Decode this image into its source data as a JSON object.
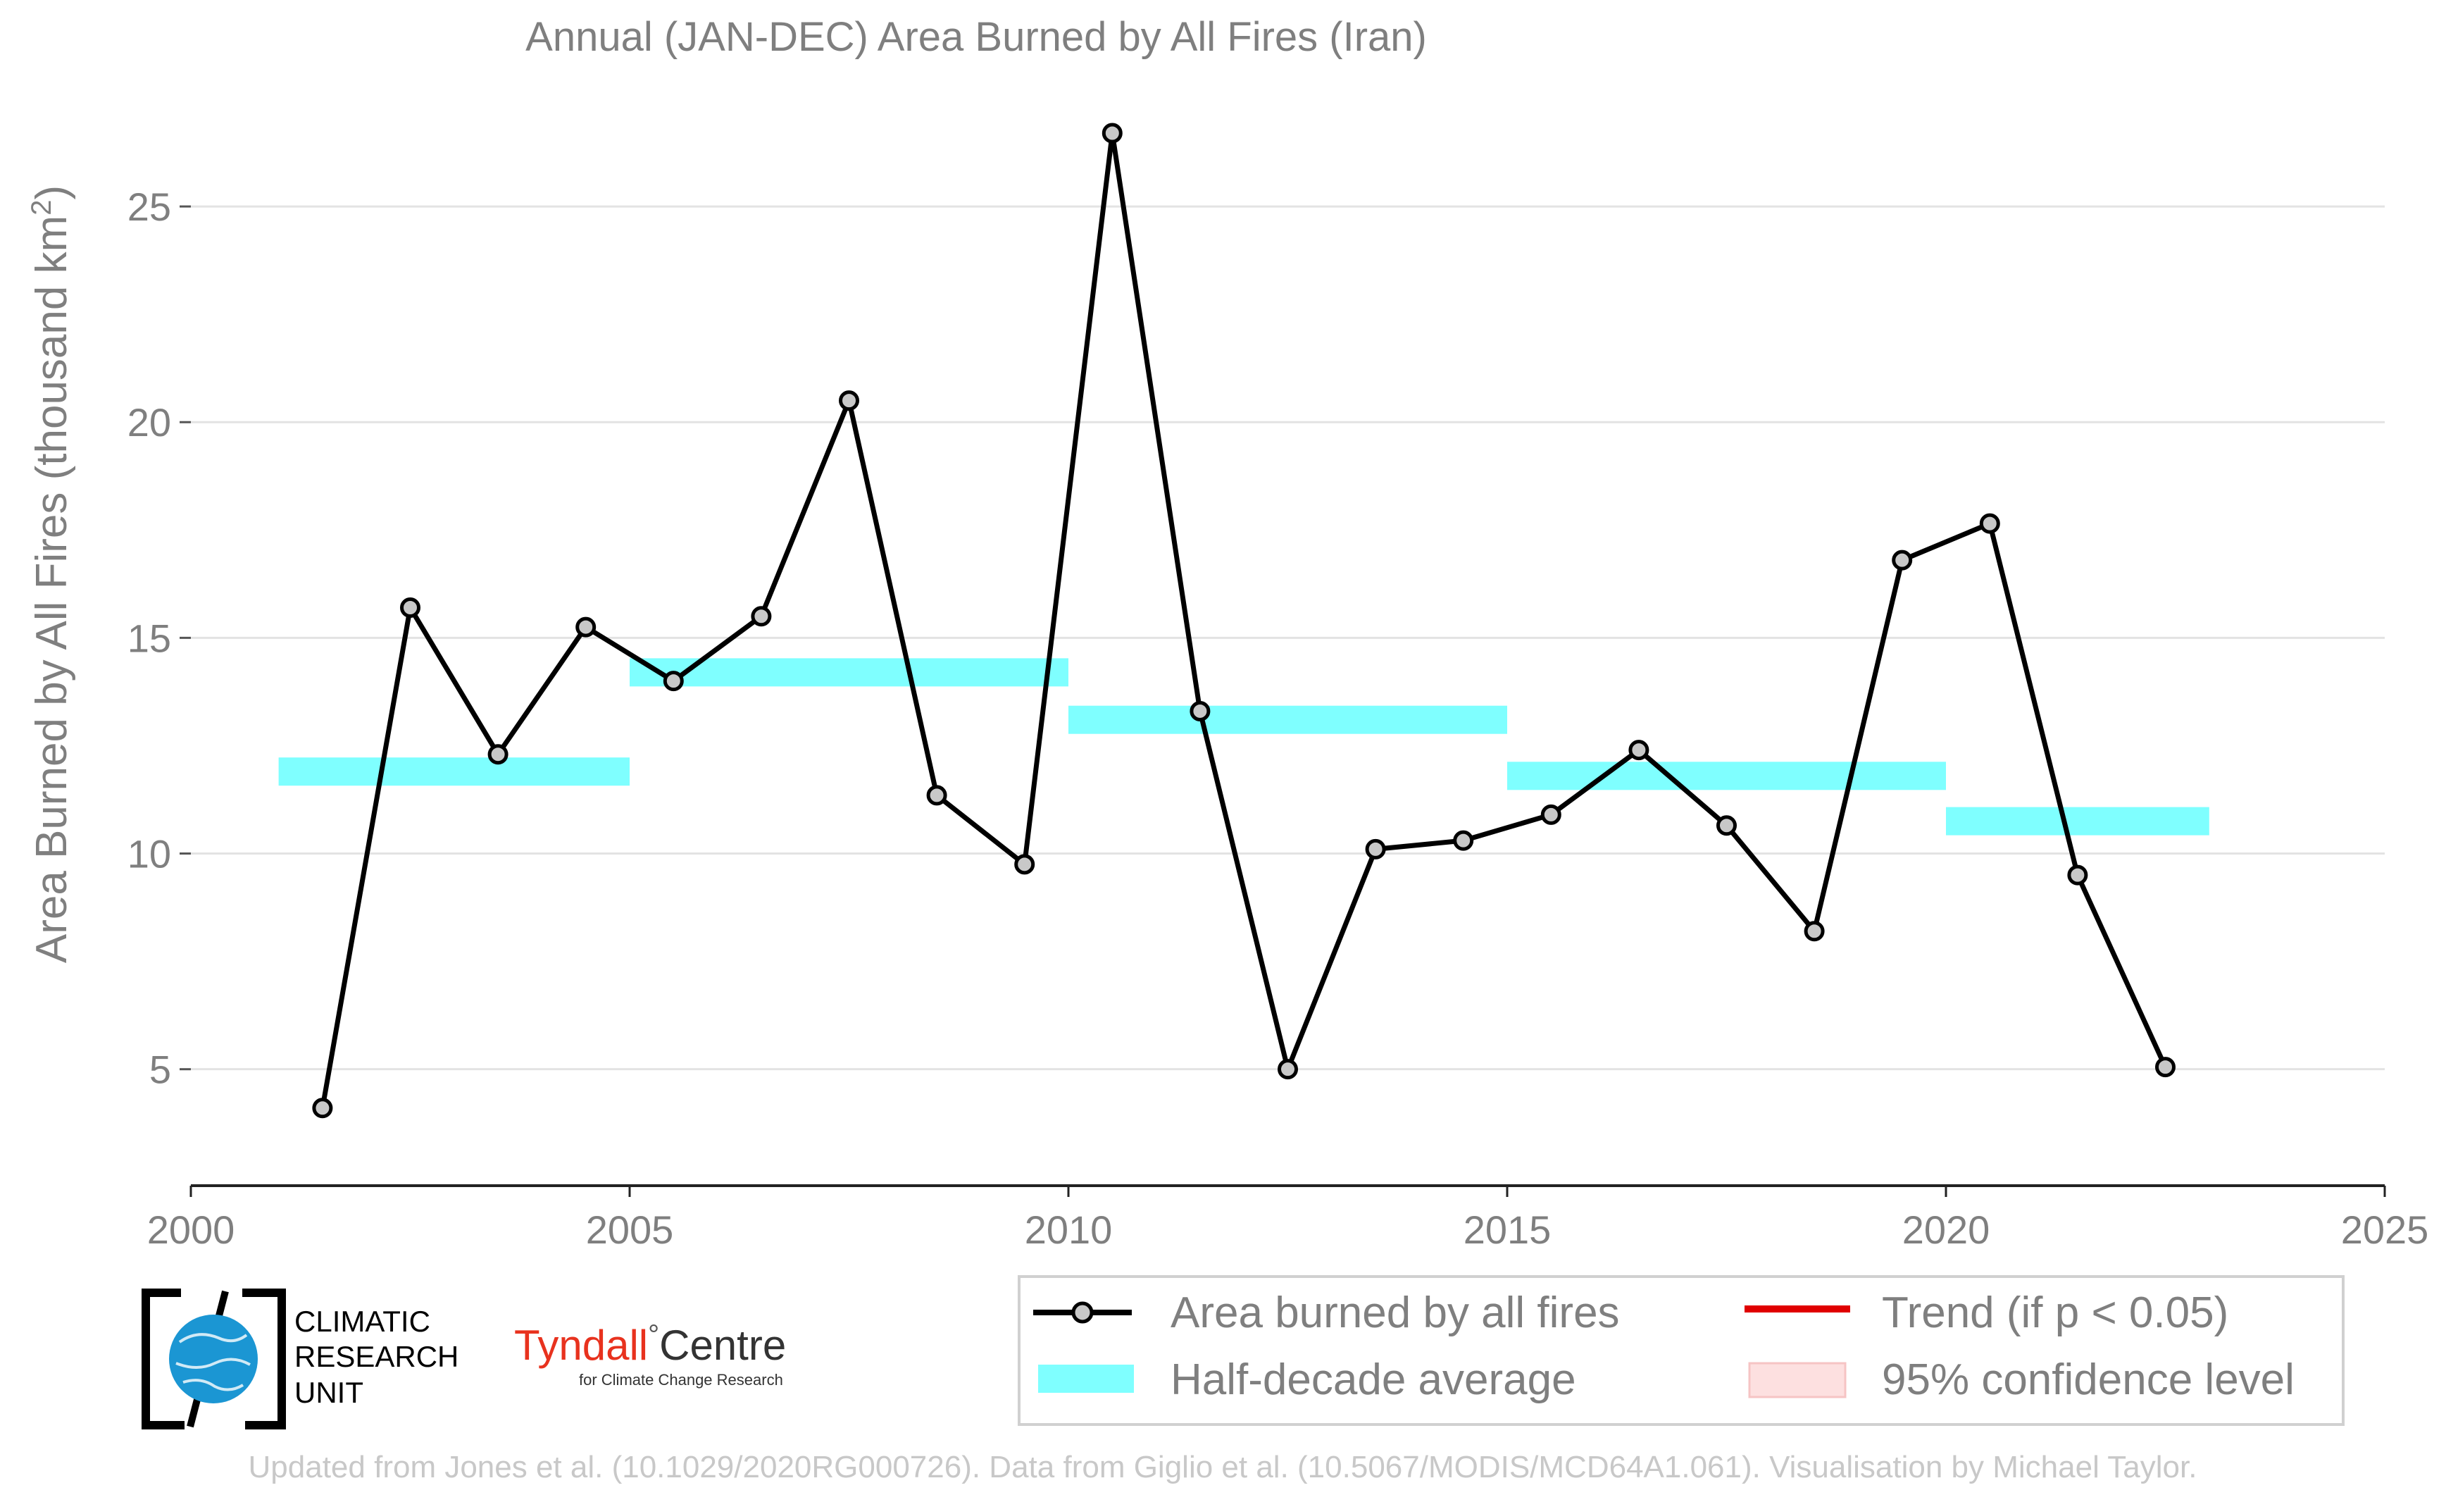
{
  "colors": {
    "line": "#000000",
    "marker_fill": "#c8c8c8",
    "half_decade": "#7fffff",
    "trend": "#e00000",
    "confidence": "#fde0e0",
    "grid": "#e3e3e3",
    "text": "#7f7f7f",
    "credit": "#c8c8c8",
    "tyndall_red": "#e8321e",
    "cru_blue": "#1b96d3"
  },
  "chart_data": {
    "type": "line",
    "title": "Annual (JAN-DEC) Area Burned by All Fires (Iran)",
    "ylabel": "Area Burned by All Fires (thousand km",
    "ylabel_superscript": "2",
    "ylabel_close": ")",
    "xlim": [
      2000,
      2025
    ],
    "ylim": [
      2.3,
      27.5
    ],
    "xticks": [
      2000,
      2005,
      2010,
      2015,
      2020,
      2025
    ],
    "yticks": [
      5,
      10,
      15,
      20,
      25
    ],
    "grid": "horizontal",
    "legend_position": "bottom-right",
    "series": [
      {
        "name": "Area burned by all fires",
        "type": "line",
        "x": [
          2001.5,
          2002.5,
          2003.5,
          2004.5,
          2005.5,
          2006.5,
          2007.5,
          2008.5,
          2009.5,
          2010.5,
          2011.5,
          2012.5,
          2013.5,
          2014.5,
          2015.5,
          2016.5,
          2017.5,
          2018.5,
          2019.5,
          2020.5,
          2021.5,
          2022.5
        ],
        "y": [
          4.1,
          15.7,
          12.3,
          15.25,
          14.0,
          15.5,
          20.5,
          11.35,
          9.75,
          26.7,
          13.3,
          5.0,
          10.1,
          10.3,
          10.9,
          12.4,
          10.65,
          8.2,
          16.8,
          17.65,
          9.5,
          5.05
        ]
      },
      {
        "name": "Half-decade average",
        "type": "step",
        "segments": [
          {
            "x0": 2001,
            "x1": 2005,
            "y": 11.9
          },
          {
            "x0": 2005,
            "x1": 2010,
            "y": 14.2
          },
          {
            "x0": 2010,
            "x1": 2015,
            "y": 13.1
          },
          {
            "x0": 2015,
            "x1": 2020,
            "y": 11.8
          },
          {
            "x0": 2020,
            "x1": 2023,
            "y": 10.75
          }
        ]
      }
    ],
    "legend": {
      "entries": [
        {
          "label": "Area burned by all fires",
          "kind": "line-marker"
        },
        {
          "label": "Trend (if p < 0.05)",
          "kind": "trend-line"
        },
        {
          "label": "Half-decade average",
          "kind": "band"
        },
        {
          "label": "95% confidence level",
          "kind": "confidence-box"
        }
      ]
    }
  },
  "logos": {
    "cru": [
      "CLIMATIC",
      "RESEARCH",
      "UNIT"
    ],
    "tyndall_main": "Tyndall",
    "tyndall_degree": "°",
    "tyndall_centre": "Centre",
    "tyndall_sub": "for Climate Change Research"
  },
  "credit": "Updated from Jones et al. (10.1029/2020RG000726). Data from Giglio et al. (10.5067/MODIS/MCD64A1.061). Visualisation by Michael Taylor."
}
